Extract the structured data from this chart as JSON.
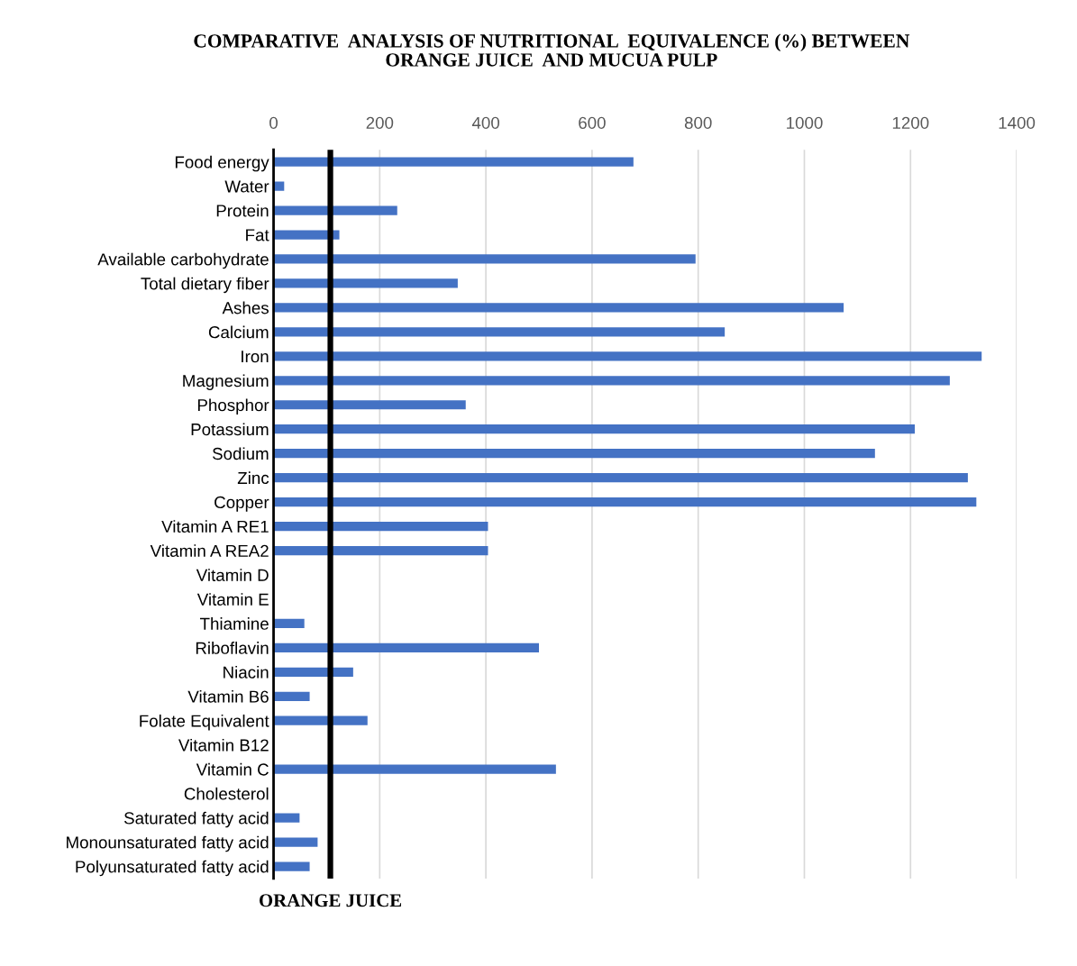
{
  "chart_data": {
    "type": "bar",
    "orientation": "horizontal",
    "title": "COMPARATIVE  ANALYSIS OF NUTRITIONAL  EQUIVALENCE (%) BETWEEN\nORANGE JUICE  AND MUCUA PULP",
    "categories": [
      "Food energy",
      "Water",
      "Protein",
      "Fat",
      "Available carbohydrate",
      "Total dietary fiber",
      "Ashes",
      "Calcium",
      "Iron",
      "Magnesium",
      "Phosphor",
      "Potassium",
      "Sodium",
      "Zinc",
      "Copper",
      "Vitamin A RE1",
      "Vitamin A REA2",
      "Vitamin D",
      "Vitamin E",
      "Thiamine",
      "Riboflavin",
      "Niacin",
      "Vitamin B6",
      "Folate Equivalent",
      "Vitamin B12",
      "Vitamin C",
      "Cholesterol",
      "Saturated fatty acid",
      "Monounsaturated fatty acid",
      "Polyunsaturated fatty acid"
    ],
    "values": [
      678,
      20,
      233,
      124,
      795,
      347,
      1074,
      850,
      1334,
      1274,
      362,
      1208,
      1133,
      1308,
      1324,
      404,
      404,
      0,
      0,
      58,
      500,
      150,
      68,
      177,
      0,
      532,
      0,
      49,
      83,
      68
    ],
    "color": "#4472c4",
    "xlim": [
      0,
      1400
    ],
    "xticks": [
      0,
      200,
      400,
      600,
      800,
      1000,
      1200,
      1400
    ],
    "grid": "x",
    "ref_lines": [
      {
        "axis": "x",
        "value": 107,
        "label": "ORANGE JUICE",
        "color": "#000000"
      }
    ]
  }
}
